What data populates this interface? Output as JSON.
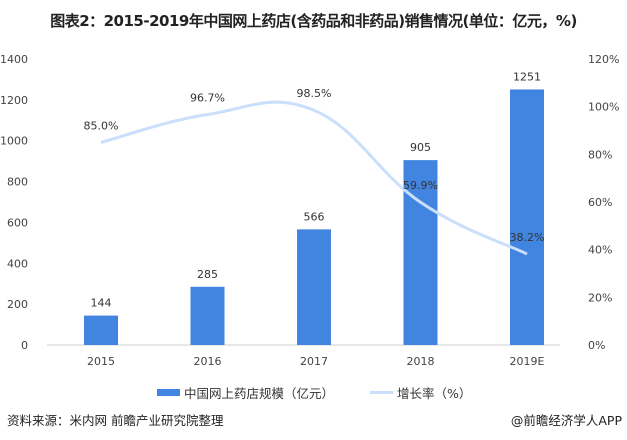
{
  "title": "图表2：2015-2019年中国网上药店(含药品和非药品)销售情况(单位：亿元，%)",
  "source": "资料来源：米内网 前瞻产业研究院整理",
  "brand": "@前瞻经济学人APP",
  "chart_data": {
    "type": "bar+line",
    "categories": [
      "2015",
      "2016",
      "2017",
      "2018",
      "2019E"
    ],
    "series": [
      {
        "name": "中国网上药店规模（亿元）",
        "type": "bar",
        "axis": "left",
        "values": [
          144,
          285,
          566,
          905,
          1251
        ],
        "labels": [
          "144",
          "285",
          "566",
          "905",
          "1251"
        ],
        "color": "#4285e0"
      },
      {
        "name": "增长率（%）",
        "type": "line",
        "axis": "right",
        "values": [
          85.0,
          96.7,
          98.5,
          59.9,
          38.2
        ],
        "labels": [
          "85.0%",
          "96.7%",
          "98.5%",
          "59.9%",
          "38.2%"
        ],
        "color": "#c9dffb"
      }
    ],
    "left_axis": {
      "ylim": [
        0,
        1400
      ],
      "ticks": [
        "0",
        "200",
        "400",
        "600",
        "800",
        "1000",
        "1200",
        "1400"
      ]
    },
    "right_axis": {
      "ylim": [
        0,
        120
      ],
      "ticks": [
        "0%",
        "20%",
        "40%",
        "60%",
        "80%",
        "100%",
        "120%"
      ]
    },
    "grid": false,
    "legend": "bottom"
  }
}
